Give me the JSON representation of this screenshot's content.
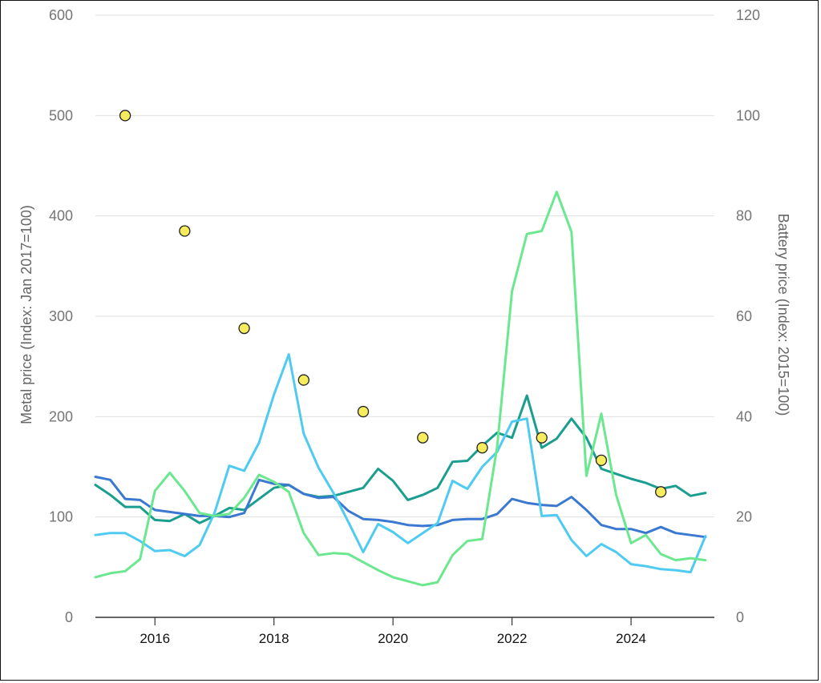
{
  "chart_data": {
    "type": "line",
    "title": "",
    "xlabel": "",
    "ylabel": "Metal price (Index: Jan 2017=100)",
    "ylabel_right": "Battery price (Index: 2015=100)",
    "xlim": [
      2015,
      2025.4
    ],
    "ylim": [
      0,
      600
    ],
    "ylim_right": [
      0,
      120
    ],
    "x_ticks": [
      2016,
      2018,
      2020,
      2022,
      2024
    ],
    "y_ticks": [
      0,
      100,
      200,
      300,
      400,
      500,
      600
    ],
    "y_ticks_right": [
      0,
      20,
      40,
      60,
      80,
      100,
      120
    ],
    "grid": true,
    "legend": "none",
    "x": [
      2015.0,
      2015.25,
      2015.5,
      2015.75,
      2016.0,
      2016.25,
      2016.5,
      2016.75,
      2017.0,
      2017.25,
      2017.5,
      2017.75,
      2018.0,
      2018.25,
      2018.5,
      2018.75,
      2019.0,
      2019.25,
      2019.5,
      2019.75,
      2020.0,
      2020.25,
      2020.5,
      2020.75,
      2021.0,
      2021.25,
      2021.5,
      2021.75,
      2022.0,
      2022.25,
      2022.5,
      2022.75,
      2023.0,
      2023.25,
      2023.5,
      2023.75,
      2024.0,
      2024.25,
      2024.5,
      2024.75,
      2025.0,
      2025.25
    ],
    "series": [
      {
        "color": "#1a9e8f",
        "values": [
          132,
          122,
          110,
          110,
          97,
          96,
          103,
          94,
          101,
          109,
          107,
          118,
          129,
          132,
          123,
          120,
          121,
          125,
          129,
          148,
          136,
          117,
          122,
          129,
          155,
          156,
          171,
          184,
          179,
          221,
          169,
          178,
          198,
          179,
          148,
          143,
          138,
          134,
          128,
          131,
          121,
          124
        ]
      },
      {
        "color": "#3b79d1",
        "values": [
          140,
          137,
          118,
          117,
          107,
          105,
          103,
          101,
          101,
          100,
          104,
          137,
          133,
          132,
          123,
          119,
          120,
          106,
          98,
          97,
          95,
          92,
          91,
          92,
          97,
          98,
          98,
          103,
          118,
          114,
          112,
          111,
          120,
          107,
          92,
          88,
          88,
          84,
          90,
          84,
          82,
          80
        ]
      },
      {
        "color": "#4fcbf2",
        "values": [
          82,
          84,
          84,
          76,
          66,
          67,
          61,
          72,
          104,
          151,
          146,
          174,
          222,
          262,
          183,
          149,
          124,
          95,
          65,
          93,
          85,
          74,
          84,
          94,
          136,
          128,
          150,
          165,
          195,
          198,
          101,
          102,
          77,
          61,
          73,
          65,
          53,
          51,
          48,
          47,
          45,
          81
        ]
      },
      {
        "color": "#6be88f",
        "values": [
          40,
          44,
          46,
          58,
          126,
          144,
          126,
          104,
          101,
          103,
          119,
          142,
          135,
          125,
          84,
          62,
          64,
          63,
          55,
          47,
          40,
          36,
          32,
          35,
          62,
          76,
          78,
          170,
          325,
          382,
          385,
          424,
          384,
          141,
          203,
          122,
          74,
          82,
          63,
          57,
          59,
          57
        ]
      }
    ],
    "battery_price": {
      "color": "#f7ec5e",
      "x": [
        2015.5,
        2016.5,
        2017.5,
        2018.5,
        2019.5,
        2020.5,
        2021.5,
        2022.5,
        2023.5,
        2024.5
      ],
      "values": [
        100,
        77,
        57.6,
        47.3,
        41,
        35.8,
        33.8,
        35.8,
        31.3,
        25
      ]
    }
  }
}
